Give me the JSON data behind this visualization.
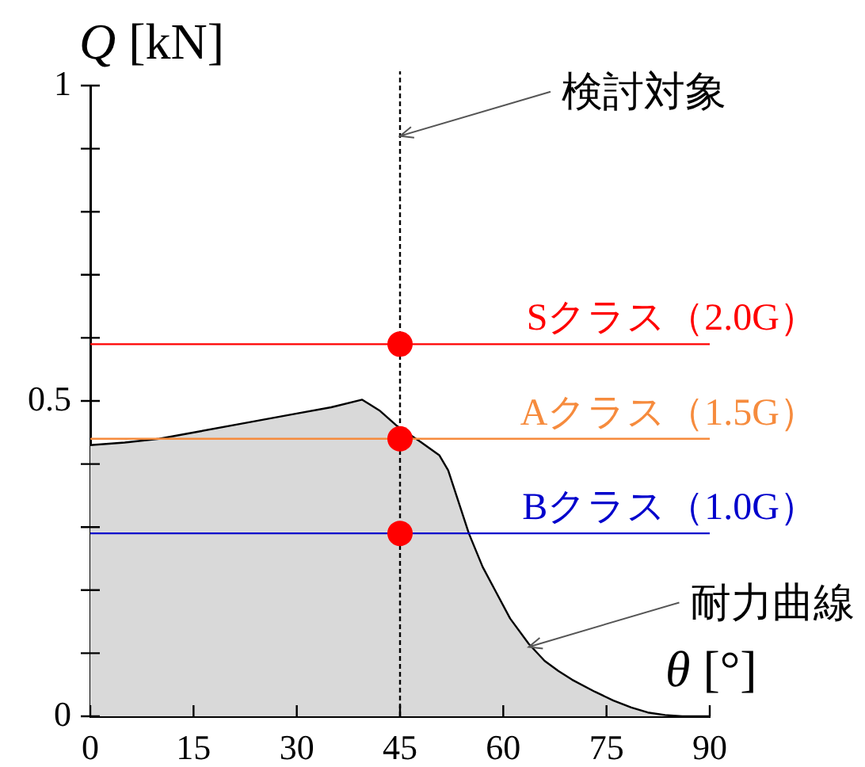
{
  "chart_data": {
    "type": "area",
    "xlabel": "θ [°]",
    "ylabel": "Q [kN]",
    "xlim": [
      0,
      90
    ],
    "xticks": [
      0,
      15,
      30,
      45,
      60,
      75,
      90
    ],
    "ylim": [
      0,
      1
    ],
    "yticks": [
      0,
      {
        "value": 0.1,
        "label": null
      },
      {
        "value": 0.2,
        "label": null
      },
      {
        "value": 0.3,
        "label": null
      },
      {
        "value": 0.4,
        "label": null
      },
      0.5,
      {
        "value": 0.6,
        "label": null
      },
      {
        "value": 0.7,
        "label": null
      },
      {
        "value": 0.8,
        "label": null
      },
      {
        "value": 0.9,
        "label": null
      },
      1
    ],
    "series": [
      {
        "color": "#d9d9d9",
        "x": [
          0,
          5,
          10,
          16,
          22,
          30,
          35,
          39.5,
          42,
          44.6,
          48,
          50.7,
          52,
          53.5,
          55,
          57,
          58.8,
          61,
          63.7,
          66,
          68,
          70,
          73.3,
          76,
          78.6,
          81,
          83.5,
          86,
          90
        ],
        "values": [
          0.43,
          0.434,
          0.44,
          0.452,
          0.464,
          0.48,
          0.49,
          0.502,
          0.485,
          0.46,
          0.435,
          0.414,
          0.39,
          0.34,
          0.29,
          0.237,
          0.2,
          0.155,
          0.115,
          0.088,
          0.072,
          0.058,
          0.039,
          0.025,
          0.014,
          0.006,
          0.002,
          0,
          0
        ]
      },
      {
        "type": "scatter",
        "color": "#ff0000",
        "marker": "circle",
        "x": [
          45,
          45,
          45
        ],
        "values": [
          0.59,
          0.44,
          0.29
        ]
      }
    ],
    "ref_lines": [
      {
        "axis": "x",
        "value": 45,
        "color": "#000000",
        "line_style": "dashed"
      },
      {
        "axis": "y",
        "value": 0.59,
        "label": "Sクラス（2.0G）",
        "color": "#ff0000"
      },
      {
        "axis": "y",
        "value": 0.44,
        "label": "Aクラス（1.5G）",
        "color": "#f68b3d"
      },
      {
        "axis": "y",
        "value": 0.29,
        "label": "Bクラス（1.0G）",
        "color": "#0000cc"
      }
    ],
    "annotations": [
      {
        "text": "検討対象",
        "x": 45,
        "y": 0.92
      },
      {
        "text": "耐力曲線",
        "x": 63.7,
        "y": 0.11
      }
    ]
  }
}
